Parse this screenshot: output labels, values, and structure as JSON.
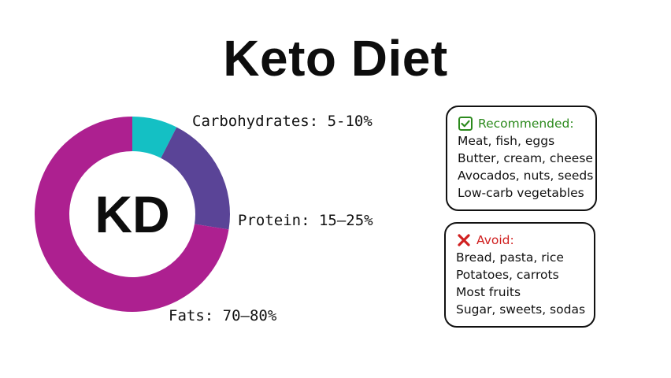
{
  "title": "Keto Diet",
  "chart_data": {
    "type": "pie",
    "center_label": "KD",
    "slices": [
      {
        "label": "Carbohydrates: 5-10%",
        "value": 7.5,
        "color": "#14c0c4"
      },
      {
        "label": "Protein: 15–25%",
        "value": 20,
        "color": "#5a4497"
      },
      {
        "label": "Fats: 70–80%",
        "value": 72.5,
        "color": "#ad2090"
      }
    ]
  },
  "recommended": {
    "heading": "Recommended:",
    "icon": "checkbox-check-icon",
    "color": "#2c8a1d",
    "items": [
      "Meat, fish, eggs",
      "Butter, cream, cheese",
      "Avocados, nuts, seeds",
      "Low-carb vegetables"
    ]
  },
  "avoid": {
    "heading": "Avoid:",
    "icon": "cross-icon",
    "color": "#d02020",
    "items": [
      "Bread, pasta, rice",
      "Potatoes, carrots",
      "Most fruits",
      "Sugar, sweets, sodas"
    ]
  }
}
